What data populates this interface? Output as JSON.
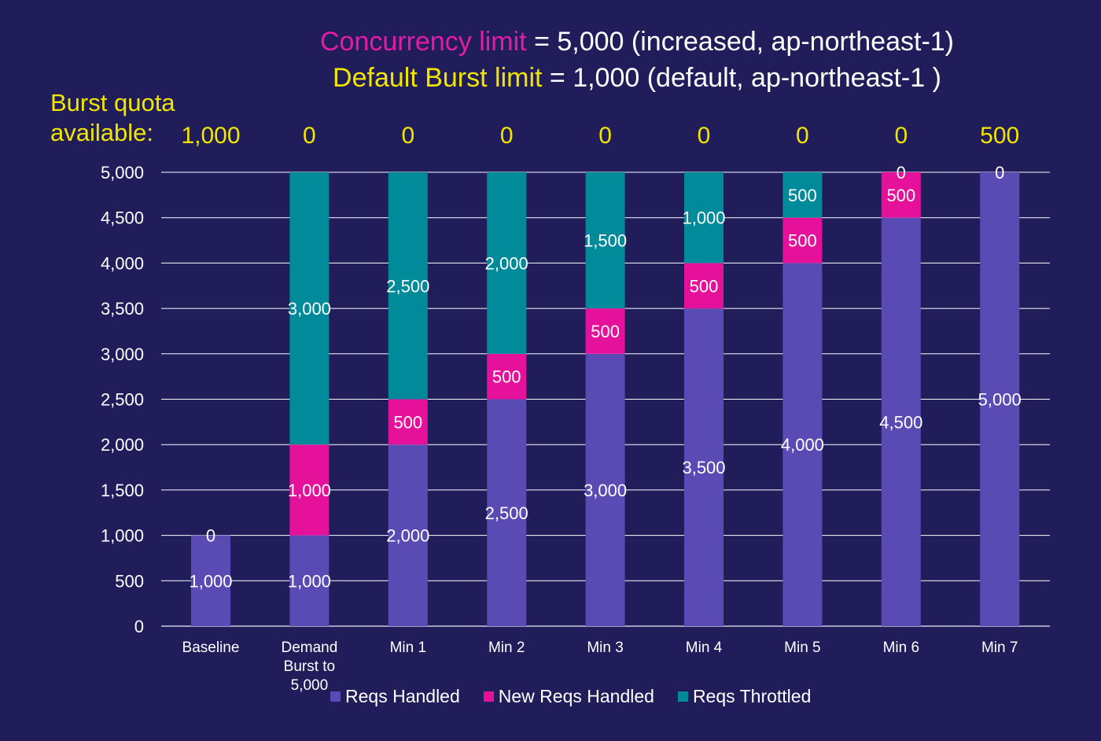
{
  "header": {
    "line1_accent": "Concurrency limit",
    "line1_rest": " = 5,000 (increased, ap-northeast-1)",
    "line2_accent": "Default Burst limit",
    "line2_rest": " = 1,000 (default, ap-northeast-1 )"
  },
  "quota": {
    "label_line1": "Burst quota",
    "label_line2": "available:",
    "values": [
      "1,000",
      "0",
      "0",
      "0",
      "0",
      "0",
      "0",
      "0",
      "500"
    ]
  },
  "colors": {
    "background": "#211d5b",
    "handled": "#5a4ab4",
    "new_handled": "#e5119a",
    "throttled": "#008a9a",
    "accent_yellow": "#f2e600",
    "accent_magenta": "#e51ba6"
  },
  "chart_data": {
    "type": "bar",
    "stacked": true,
    "categories": [
      "Baseline",
      "Demand Burst to 5,000",
      "Min 1",
      "Min 2",
      "Min 3",
      "Min 4",
      "Min 5",
      "Min 6",
      "Min 7"
    ],
    "category_lines": [
      [
        "Baseline"
      ],
      [
        "Demand",
        "Burst to",
        "5,000"
      ],
      [
        "Min 1"
      ],
      [
        "Min 2"
      ],
      [
        "Min 3"
      ],
      [
        "Min 4"
      ],
      [
        "Min 5"
      ],
      [
        "Min 6"
      ],
      [
        "Min 7"
      ]
    ],
    "series": [
      {
        "name": "Reqs Handled",
        "values": [
          1000,
          1000,
          2000,
          2500,
          3000,
          3500,
          4000,
          4500,
          5000
        ],
        "labels": [
          "1,000",
          "1,000",
          "2,000",
          "2,500",
          "3,000",
          "3,500",
          "4,000",
          "4,500",
          "5,000"
        ]
      },
      {
        "name": "New Reqs Handled",
        "values": [
          0,
          1000,
          500,
          500,
          500,
          500,
          500,
          500,
          0
        ],
        "labels": [
          null,
          "1,000",
          "500",
          "500",
          "500",
          "500",
          "500",
          "500",
          null
        ]
      },
      {
        "name": "Reqs Throttled",
        "values": [
          0,
          3000,
          2500,
          2000,
          1500,
          1000,
          500,
          0,
          0
        ],
        "labels": [
          "0",
          "3,000",
          "2,500",
          "2,000",
          "1,500",
          "1,000",
          "500",
          "0",
          "0"
        ]
      }
    ],
    "y_ticks": [
      "0",
      "500",
      "1,000",
      "1,500",
      "2,000",
      "2,500",
      "3,000",
      "3,500",
      "4,000",
      "4,500",
      "5,000"
    ],
    "ylim": [
      0,
      5000
    ],
    "grid": true,
    "legend_position": "bottom"
  }
}
